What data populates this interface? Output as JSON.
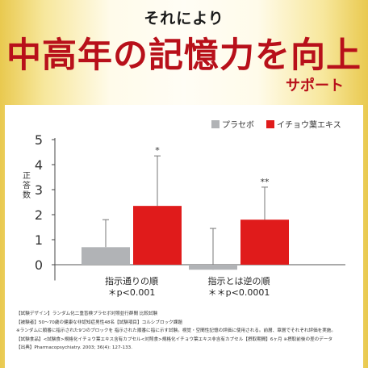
{
  "header": {
    "lead": "それにより",
    "headline": "中高年の記憶力を向上",
    "sub": "サポート"
  },
  "chart_data": {
    "type": "bar",
    "categories": [
      "指示通りの順",
      "指示とは逆の順"
    ],
    "category_notes": [
      "＊p<0.001",
      "＊＊p<0.0001"
    ],
    "series": [
      {
        "name": "プラセボ",
        "values": [
          0.7,
          -0.2
        ],
        "errors": [
          1.1,
          1.65
        ],
        "color": "#b1b3b6",
        "marks": [
          "",
          ""
        ]
      },
      {
        "name": "イチョウ葉エキス",
        "values": [
          2.35,
          1.8
        ],
        "errors": [
          2.0,
          1.3
        ],
        "color": "#e01b1b",
        "marks": [
          "*",
          "**"
        ]
      }
    ],
    "ylabel": "正答数",
    "ylim": [
      -0.5,
      5
    ],
    "yticks": [
      0,
      1,
      2,
      3,
      4,
      5
    ],
    "grid": false,
    "legend": "top-right"
  },
  "footnotes": [
    "【試験デザイン】ランダム化二重盲検プラセボ対照並行群間 比較試験",
    "【被験者】50〜70歳の健康な非認知症男性48名【試験項目】コルシブロック課題",
    "※ランダムに順番に指示された9つのブロックを 指示された順番に指に示す試験。視覚・空間性記憶の評価に使用される。前層、章層でそれぞれ評価を実施。",
    "【試験食品】<試験食>規格化イチョウ葉エキス含有カプセル<対照食>規格化イチョウ葉エキス非含有カプセル【摂取期間】6ヶ月 ※摂取前後の差のデータ",
    "【出典】Pharmacopsychiatry. 2003; 36(4): 127-133."
  ]
}
